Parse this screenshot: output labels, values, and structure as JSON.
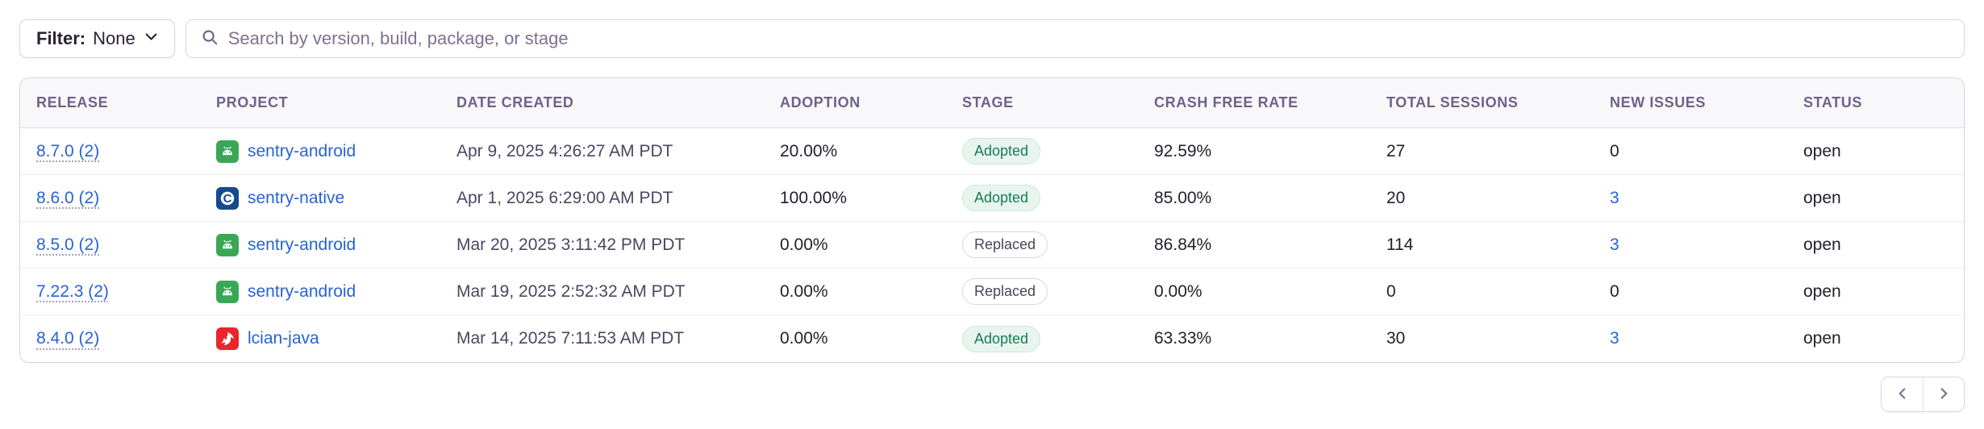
{
  "toolbar": {
    "filter_label": "Filter:",
    "filter_value": "None",
    "search_placeholder": "Search by version, build, package, or stage"
  },
  "table": {
    "columns": [
      "RELEASE",
      "PROJECT",
      "DATE CREATED",
      "ADOPTION",
      "STAGE",
      "CRASH FREE RATE",
      "TOTAL SESSIONS",
      "NEW ISSUES",
      "STATUS"
    ],
    "rows": [
      {
        "release": "8.7.0 (2)",
        "project": "sentry-android",
        "platform_icon": "android-icon",
        "date_created": "Apr 9, 2025 4:26:27 AM PDT",
        "adoption": "20.00%",
        "stage": "Adopted",
        "crash_free_rate": "92.59%",
        "total_sessions": "27",
        "new_issues": "0",
        "new_issues_is_link": false,
        "status": "open"
      },
      {
        "release": "8.6.0 (2)",
        "project": "sentry-native",
        "platform_icon": "c-icon",
        "date_created": "Apr 1, 2025 6:29:00 AM PDT",
        "adoption": "100.00%",
        "stage": "Adopted",
        "crash_free_rate": "85.00%",
        "total_sessions": "20",
        "new_issues": "3",
        "new_issues_is_link": true,
        "status": "open"
      },
      {
        "release": "8.5.0 (2)",
        "project": "sentry-android",
        "platform_icon": "android-icon",
        "date_created": "Mar 20, 2025 3:11:42 PM PDT",
        "adoption": "0.00%",
        "stage": "Replaced",
        "crash_free_rate": "86.84%",
        "total_sessions": "114",
        "new_issues": "3",
        "new_issues_is_link": true,
        "status": "open"
      },
      {
        "release": "7.22.3 (2)",
        "project": "sentry-android",
        "platform_icon": "android-icon",
        "date_created": "Mar 19, 2025 2:52:32 AM PDT",
        "adoption": "0.00%",
        "stage": "Replaced",
        "crash_free_rate": "0.00%",
        "total_sessions": "0",
        "new_issues": "0",
        "new_issues_is_link": false,
        "status": "open"
      },
      {
        "release": "8.4.0 (2)",
        "project": "lcian-java",
        "platform_icon": "java-icon",
        "date_created": "Mar 14, 2025 7:11:53 AM PDT",
        "adoption": "0.00%",
        "stage": "Adopted",
        "crash_free_rate": "63.33%",
        "total_sessions": "30",
        "new_issues": "3",
        "new_issues_is_link": true,
        "status": "open"
      }
    ]
  },
  "pagination": {
    "prev": "chevron-left-icon",
    "next": "chevron-right-icon"
  },
  "colors": {
    "link_blue": "#2763d6",
    "adopted_text": "#177c57",
    "adopted_bg": "#e8f4ee",
    "android_green": "#3aa757",
    "native_navy": "#154a8f",
    "java_red": "#e8262c",
    "header_text": "#6f6287",
    "border": "#d9d4e0"
  }
}
